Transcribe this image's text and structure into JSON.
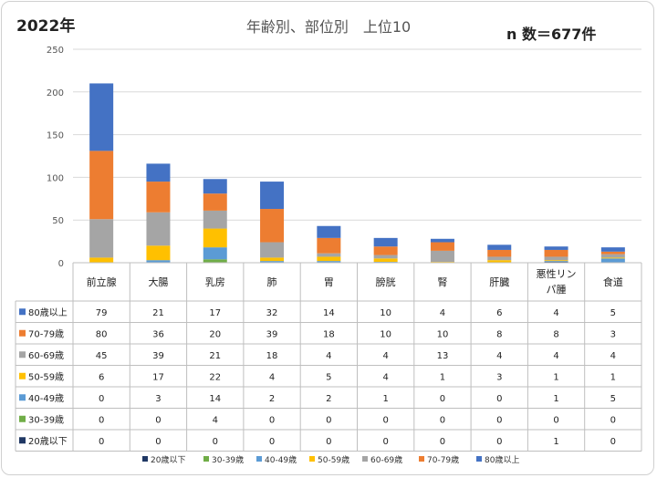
{
  "header": {
    "year": "2022年",
    "title": "年齢別、部位別　上位10",
    "count": "n 数＝677件"
  },
  "chart_data": {
    "type": "bar",
    "stacked": true,
    "title": "年齢別、部位別　上位10",
    "categories": [
      "前立腺",
      "大腸",
      "乳房",
      "肺",
      "胃",
      "膀胱",
      "腎",
      "肝臓",
      "悪性リンパ腫",
      "食道"
    ],
    "ylim": [
      0,
      250
    ],
    "yticks": [
      0,
      50,
      100,
      150,
      200,
      250
    ],
    "grid": true,
    "legend_position": "bottom",
    "series": [
      {
        "name": "20歳以下",
        "color": "#203864",
        "values": [
          0,
          0,
          0,
          0,
          0,
          0,
          0,
          0,
          1,
          0
        ]
      },
      {
        "name": "30-39歳",
        "color": "#70ad47",
        "values": [
          0,
          0,
          4,
          0,
          0,
          0,
          0,
          0,
          0,
          0
        ]
      },
      {
        "name": "40-49歳",
        "color": "#5b9bd5",
        "values": [
          0,
          3,
          14,
          2,
          2,
          1,
          0,
          0,
          1,
          5
        ]
      },
      {
        "name": "50-59歳",
        "color": "#ffc000",
        "values": [
          6,
          17,
          22,
          4,
          5,
          4,
          1,
          3,
          1,
          1
        ]
      },
      {
        "name": "60-69歳",
        "color": "#a5a5a5",
        "values": [
          45,
          39,
          21,
          18,
          4,
          4,
          13,
          4,
          4,
          4
        ]
      },
      {
        "name": "70-79歳",
        "color": "#ed7d31",
        "values": [
          80,
          36,
          20,
          39,
          18,
          10,
          10,
          8,
          8,
          3
        ]
      },
      {
        "name": "80歳以上",
        "color": "#4472c4",
        "values": [
          79,
          21,
          17,
          32,
          14,
          10,
          4,
          6,
          4,
          5
        ]
      }
    ],
    "table_row_order": [
      "80歳以上",
      "70-79歳",
      "60-69歳",
      "50-59歳",
      "40-49歳",
      "30-39歳",
      "20歳以下"
    ],
    "legend_order": [
      "20歳以下",
      "30-39歳",
      "40-49歳",
      "50-59歳",
      "60-69歳",
      "70-79歳",
      "80歳以上"
    ]
  }
}
